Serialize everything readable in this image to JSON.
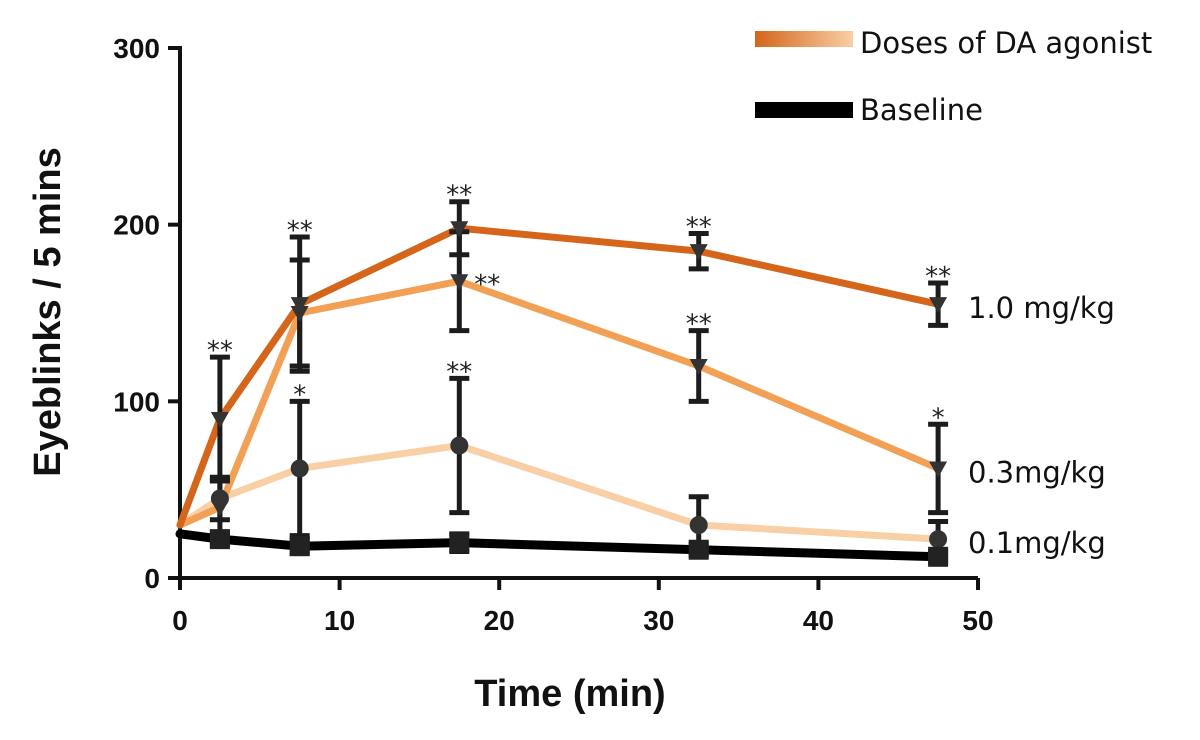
{
  "chart_data": {
    "type": "line",
    "xlabel": "Time (min)",
    "ylabel": "Eyeblinks / 5 mins",
    "xlim": [
      0,
      50
    ],
    "ylim": [
      0,
      300
    ],
    "x_ticks": [
      0,
      10,
      20,
      30,
      40,
      50
    ],
    "y_ticks": [
      0,
      100,
      200,
      300
    ],
    "x_tick_labels": [
      "0",
      "10",
      "20",
      "30",
      "40",
      "50"
    ],
    "y_tick_labels": [
      "0",
      "100",
      "200",
      "300"
    ],
    "legend": {
      "placement": "top-right",
      "entries": [
        {
          "label": "Doses of DA agonist",
          "colors": [
            "#d4651a",
            "#f9cfa5"
          ]
        },
        {
          "label": "Baseline",
          "colors": [
            "#000000"
          ]
        }
      ]
    },
    "series": [
      {
        "name": "1.0 mg/kg",
        "color": "#d4651a",
        "x": [
          0,
          2.5,
          7.5,
          17.5,
          32.5,
          47.5
        ],
        "values": [
          30,
          90,
          155,
          198,
          185,
          155
        ],
        "err": [
          0,
          35,
          38,
          15,
          10,
          12
        ],
        "stars": [
          "",
          "**",
          "**",
          "**",
          "**",
          "**"
        ]
      },
      {
        "name": "0.3mg/kg",
        "color": "#f2a055",
        "x": [
          0,
          2.5,
          7.5,
          17.5,
          32.5,
          47.5
        ],
        "values": [
          30,
          40,
          150,
          168,
          120,
          62
        ],
        "err": [
          0,
          15,
          30,
          28,
          20,
          25
        ],
        "stars": [
          "",
          "",
          "",
          "**",
          "**",
          "*"
        ]
      },
      {
        "name": "0.1mg/kg",
        "color": "#f9cfa5",
        "x": [
          0,
          2.5,
          7.5,
          17.5,
          32.5,
          47.5
        ],
        "values": [
          30,
          45,
          62,
          75,
          30,
          22
        ],
        "err": [
          0,
          12,
          38,
          38,
          16,
          10
        ],
        "stars": [
          "",
          "",
          "*",
          "**",
          "",
          ""
        ]
      },
      {
        "name": "",
        "color": "#000000",
        "x": [
          0,
          2.5,
          7.5,
          17.5,
          32.5,
          47.5
        ],
        "values": [
          25,
          22,
          18,
          20,
          16,
          12
        ],
        "err": [
          0,
          4,
          4,
          5,
          3,
          3
        ],
        "stars": [
          "",
          "",
          "",
          "",
          "",
          ""
        ]
      }
    ]
  }
}
